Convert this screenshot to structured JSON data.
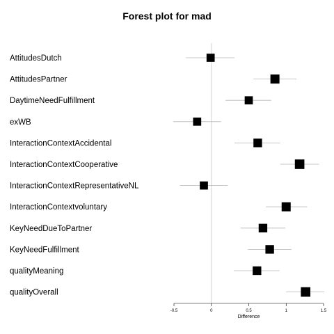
{
  "chart_data": {
    "type": "forest",
    "title": "Forest plot for mad",
    "xlabel": "Difference",
    "xlim": [
      -0.5,
      1.5
    ],
    "xticks": [
      -0.5,
      0,
      0.5,
      1,
      1.5
    ],
    "xtick_labels": [
      "-0.5",
      "0",
      "0.5",
      "1",
      "1.5"
    ],
    "reference_line": 0,
    "rows": [
      {
        "label": "AttitudesDutch",
        "estimate": -0.01,
        "lower": -0.34,
        "upper": 0.31,
        "marker_size": 0.9
      },
      {
        "label": "AttitudesPartner",
        "estimate": 0.85,
        "lower": 0.56,
        "upper": 1.14,
        "marker_size": 1.0
      },
      {
        "label": "DaytimeNeedFulfillment",
        "estimate": 0.5,
        "lower": 0.19,
        "upper": 0.8,
        "marker_size": 0.9
      },
      {
        "label": "exWB",
        "estimate": -0.19,
        "lower": -0.51,
        "upper": 0.13,
        "marker_size": 0.9
      },
      {
        "label": "InteractionContextAccidental",
        "estimate": 0.62,
        "lower": 0.31,
        "upper": 0.92,
        "marker_size": 0.95
      },
      {
        "label": "InteractionContextCooperative",
        "estimate": 1.18,
        "lower": 0.92,
        "upper": 1.44,
        "marker_size": 1.05
      },
      {
        "label": "InteractionContextRepresentativeNL",
        "estimate": -0.1,
        "lower": -0.42,
        "upper": 0.22,
        "marker_size": 0.9
      },
      {
        "label": "InteractionContextvoluntary",
        "estimate": 1.0,
        "lower": 0.73,
        "upper": 1.28,
        "marker_size": 1.0
      },
      {
        "label": "KeyNeedDueToPartner",
        "estimate": 0.69,
        "lower": 0.39,
        "upper": 0.99,
        "marker_size": 0.95
      },
      {
        "label": "KeyNeedFulfillment",
        "estimate": 0.78,
        "lower": 0.49,
        "upper": 1.07,
        "marker_size": 0.95
      },
      {
        "label": "qualityMeaning",
        "estimate": 0.61,
        "lower": 0.3,
        "upper": 0.91,
        "marker_size": 0.95
      },
      {
        "label": "qualityOverall",
        "estimate": 1.26,
        "lower": 1.0,
        "upper": 1.51,
        "marker_size": 1.05
      }
    ]
  }
}
